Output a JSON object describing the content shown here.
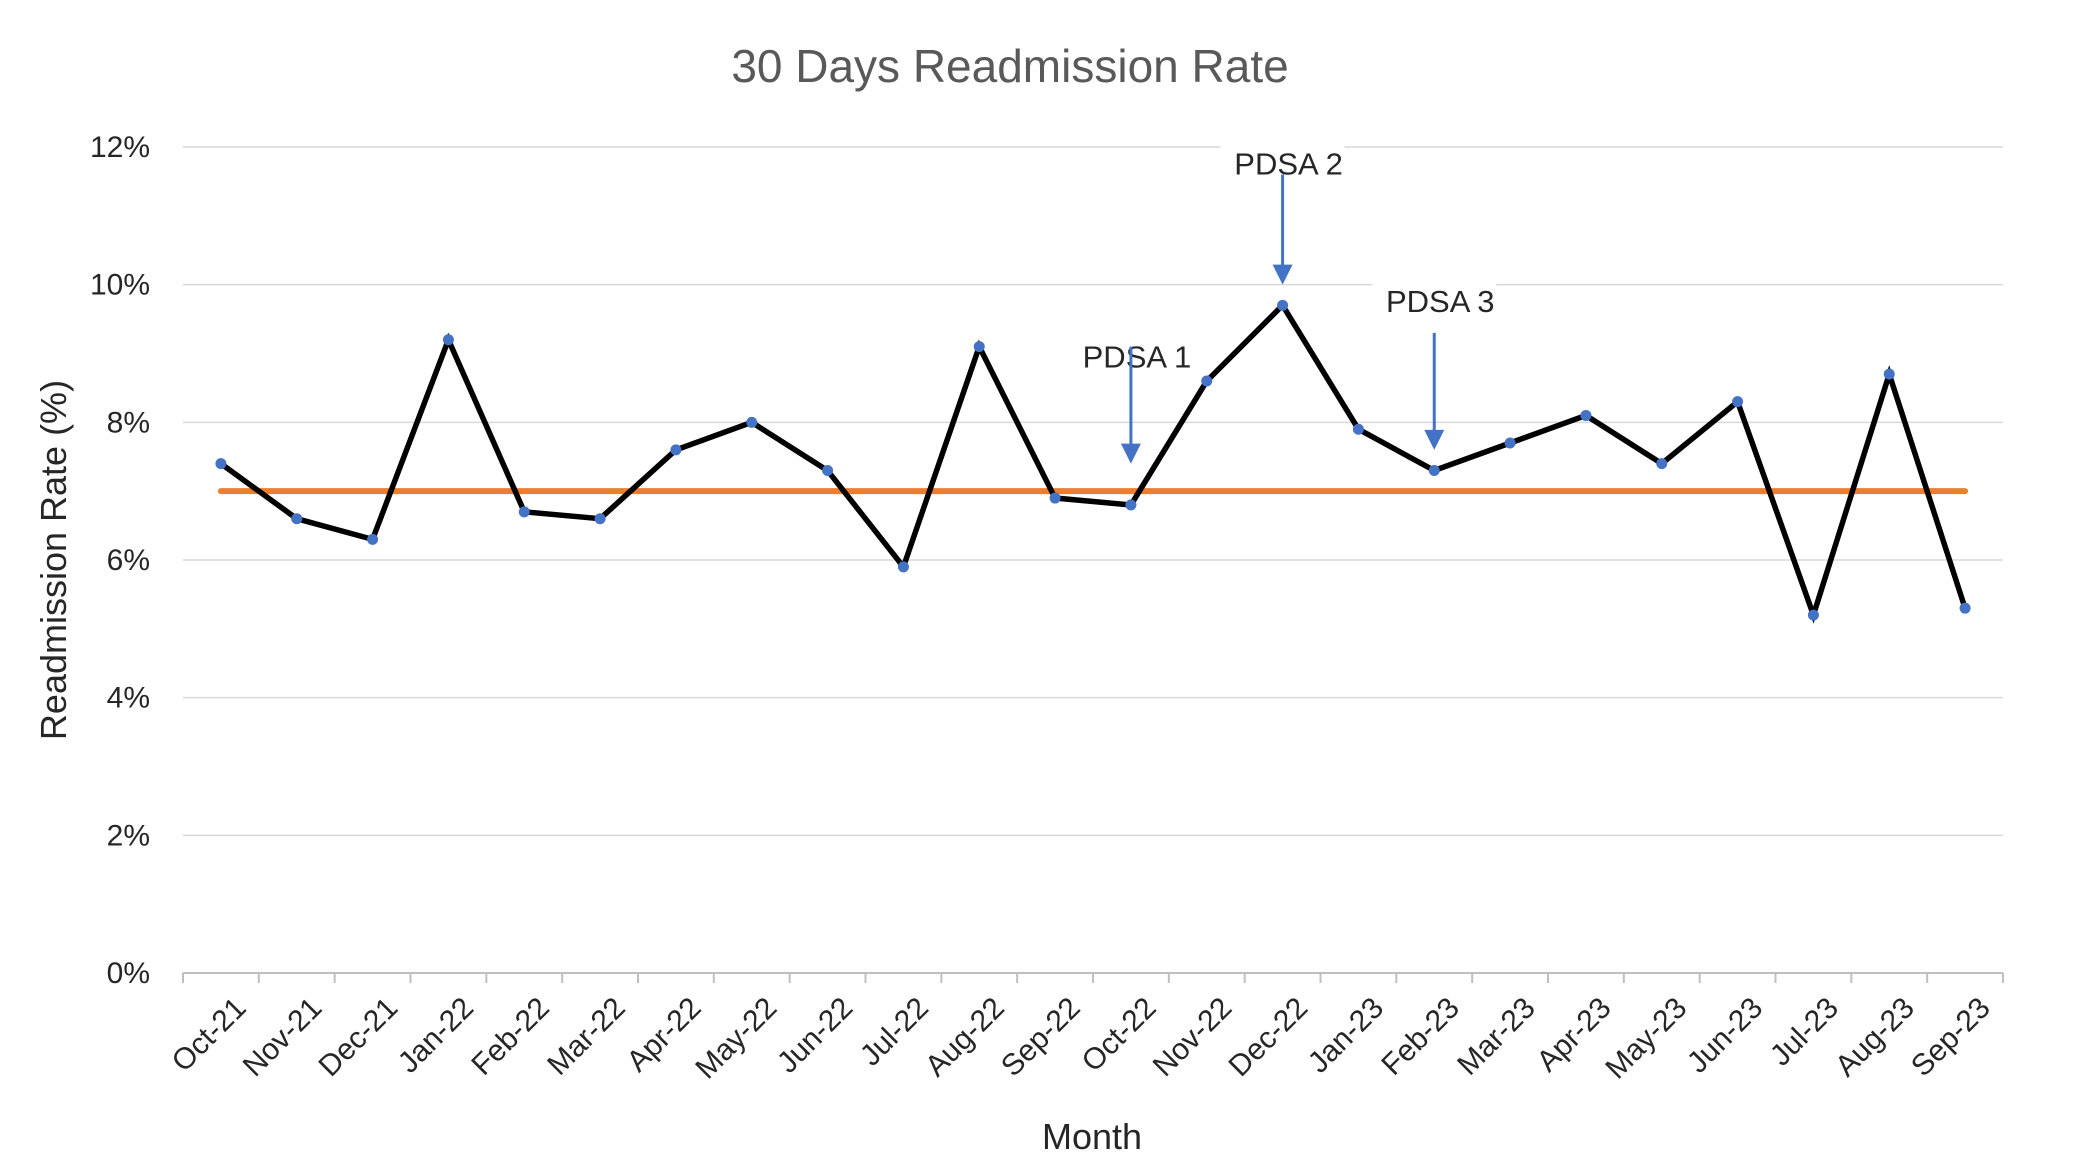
{
  "chart_data": {
    "type": "line",
    "title": "30 Days Readmission Rate",
    "xlabel": "Month",
    "ylabel": "Readmission Rate (%)",
    "categories": [
      "Oct-21",
      "Nov-21",
      "Dec-21",
      "Jan-22",
      "Feb-22",
      "Mar-22",
      "Apr-22",
      "May-22",
      "Jun-22",
      "Jul-22",
      "Aug-22",
      "Sep-22",
      "Oct-22",
      "Nov-22",
      "Dec-22",
      "Jan-23",
      "Feb-23",
      "Mar-23",
      "Apr-23",
      "May-23",
      "Jun-23",
      "Jul-23",
      "Aug-23",
      "Sep-23"
    ],
    "ylim": [
      0,
      12
    ],
    "yticks": [
      0,
      2,
      4,
      6,
      8,
      10,
      12
    ],
    "ytick_labels": [
      "0%",
      "2%",
      "4%",
      "6%",
      "8%",
      "10%",
      "12%"
    ],
    "grid": true,
    "legend": "none",
    "series": [
      {
        "values": [
          7.4,
          6.6,
          6.3,
          9.2,
          6.7,
          6.6,
          7.6,
          8.0,
          7.3,
          5.9,
          9.1,
          6.9,
          6.8,
          8.6,
          9.7,
          7.9,
          7.3,
          7.7,
          8.1,
          7.4,
          8.3,
          5.2,
          8.7,
          5.3
        ],
        "color": "#000000",
        "marker_color": "#4472C4"
      }
    ],
    "reference_line": {
      "value": 7.0,
      "color": "#ED7D31"
    },
    "annotations": [
      {
        "text": "PDSA 1",
        "category": "Oct-22",
        "text_y": 8.8,
        "arrow_from": 9.1,
        "arrow_to": 7.4
      },
      {
        "text": "PDSA 2",
        "category": "Dec-22",
        "text_y": 11.6,
        "arrow_from": 11.6,
        "arrow_to": 10.0
      },
      {
        "text": "PDSA 3",
        "category": "Feb-23",
        "text_y": 9.6,
        "arrow_from": 9.3,
        "arrow_to": 7.6
      }
    ],
    "arrow_color": "#4472C4"
  }
}
